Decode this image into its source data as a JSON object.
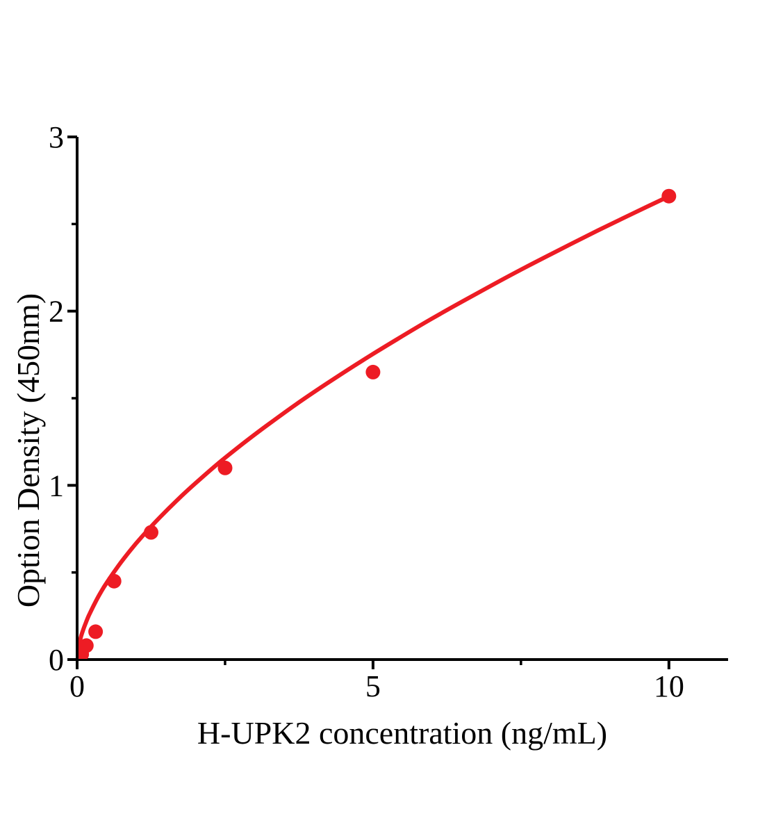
{
  "chart_data": {
    "type": "scatter",
    "title": "",
    "xlabel": "H-UPK2 concentration (ng/mL)",
    "ylabel": "Option Density (450nm)",
    "xlim": [
      0,
      11
    ],
    "ylim": [
      0,
      3
    ],
    "grid": false,
    "legend": null,
    "axis_color": "#000000",
    "x_major_ticks": [
      {
        "value": 0,
        "label": "0"
      },
      {
        "value": 5,
        "label": "5"
      },
      {
        "value": 10,
        "label": "10"
      }
    ],
    "x_minor_ticks": [
      2.5,
      7.5
    ],
    "y_major_ticks": [
      {
        "value": 0,
        "label": "0"
      },
      {
        "value": 1,
        "label": "1"
      },
      {
        "value": 2,
        "label": "2"
      },
      {
        "value": 3,
        "label": "3"
      }
    ],
    "y_minor_ticks": [
      0.5,
      1.5,
      2.5
    ],
    "series": [
      {
        "name": "standard-curve-data-points",
        "type": "scatter",
        "marker": "circle",
        "color": "#ED1C24",
        "points": [
          [
            0.078,
            0.03
          ],
          [
            0.156,
            0.08
          ],
          [
            0.3125,
            0.16
          ],
          [
            0.625,
            0.45
          ],
          [
            1.25,
            0.73
          ],
          [
            2.5,
            1.1
          ],
          [
            5,
            1.65
          ],
          [
            10,
            2.66
          ]
        ]
      },
      {
        "name": "fitted-curve",
        "type": "line",
        "color": "#ED1C24",
        "points": [
          [
            0,
            0
          ],
          [
            0.05,
            0.111
          ],
          [
            0.1,
            0.168
          ],
          [
            0.15,
            0.214
          ],
          [
            0.2,
            0.254
          ],
          [
            0.3,
            0.324
          ],
          [
            0.4,
            0.386
          ],
          [
            0.5,
            0.441
          ],
          [
            0.7,
            0.539
          ],
          [
            0.9,
            0.627
          ],
          [
            1.1,
            0.707
          ],
          [
            1.4,
            0.817
          ],
          [
            1.7,
            0.918
          ],
          [
            2.0,
            1.012
          ],
          [
            2.4,
            1.13
          ],
          [
            2.8,
            1.239
          ],
          [
            3.2,
            1.342
          ],
          [
            3.7,
            1.465
          ],
          [
            4.2,
            1.58
          ],
          [
            4.8,
            1.712
          ],
          [
            5.4,
            1.837
          ],
          [
            6.0,
            1.958
          ],
          [
            6.7,
            2.091
          ],
          [
            7.4,
            2.22
          ],
          [
            8.1,
            2.343
          ],
          [
            8.8,
            2.463
          ],
          [
            9.4,
            2.562
          ],
          [
            10,
            2.659
          ]
        ]
      }
    ]
  }
}
